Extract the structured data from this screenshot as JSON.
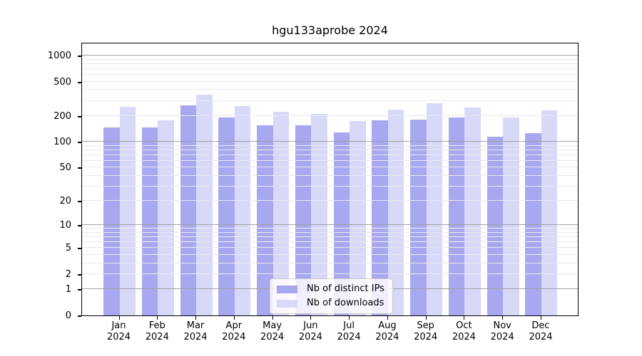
{
  "title": "hgu133aprobe 2024",
  "legend": {
    "items": [
      {
        "label": "Nb of distinct IPs",
        "color": "#a8a8f0"
      },
      {
        "label": "Nb of downloads",
        "color": "#d8d8f8"
      }
    ]
  },
  "axes": {
    "ytick_labels": [
      "0",
      "1",
      "2",
      "5",
      "10",
      "20",
      "50",
      "100",
      "200",
      "500",
      "1000"
    ]
  },
  "chart_data": {
    "type": "bar",
    "title": "hgu133aprobe 2024",
    "categories": [
      "Jan 2024",
      "Feb 2024",
      "Mar 2024",
      "Apr 2024",
      "May 2024",
      "Jun 2024",
      "Jul 2024",
      "Aug 2024",
      "Sep 2024",
      "Oct 2024",
      "Nov 2024",
      "Dec 2024"
    ],
    "series": [
      {
        "name": "Nb of distinct IPs",
        "color": "#a8a8f0",
        "values": [
          148,
          148,
          265,
          193,
          157,
          155,
          129,
          179,
          181,
          192,
          115,
          126
        ]
      },
      {
        "name": "Nb of downloads",
        "color": "#d8d8f8",
        "values": [
          255,
          177,
          354,
          261,
          222,
          210,
          174,
          237,
          283,
          250,
          192,
          232
        ]
      }
    ],
    "xlabel": "",
    "ylabel": "",
    "yscale": "log10(1+x)",
    "yticks": [
      0,
      1,
      2,
      5,
      10,
      20,
      50,
      100,
      200,
      500,
      1000
    ],
    "ylim": [
      0,
      1430
    ],
    "grid": "horizontal",
    "grid_over_bars": true,
    "legend_position": "lower center"
  }
}
